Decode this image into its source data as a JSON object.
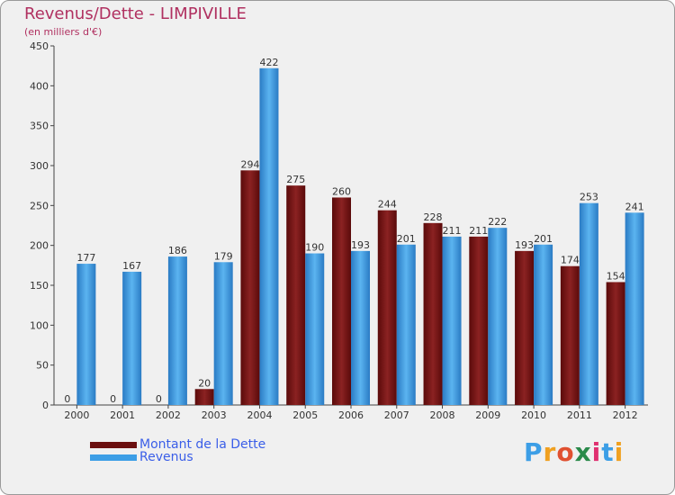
{
  "chart_data": {
    "type": "bar",
    "title": "Revenus/Dette - LIMPIVILLE",
    "subtitle": "(en milliers d'€)",
    "categories": [
      "2000",
      "2001",
      "2002",
      "2003",
      "2004",
      "2005",
      "2006",
      "2007",
      "2008",
      "2009",
      "2010",
      "2011",
      "2012"
    ],
    "series": [
      {
        "name": "Montant de la Dette",
        "color": "#8b1a1a",
        "values": [
          0,
          0,
          0,
          20,
          294,
          275,
          260,
          244,
          228,
          211,
          193,
          174,
          154
        ]
      },
      {
        "name": "Revenus",
        "color": "#3c9ee6",
        "values": [
          177,
          167,
          186,
          179,
          422,
          190,
          193,
          201,
          211,
          222,
          201,
          253,
          241
        ]
      }
    ],
    "ylim": [
      0,
      450
    ],
    "yticks": [
      0,
      50,
      100,
      150,
      200,
      250,
      300,
      350,
      400,
      450
    ],
    "grid": false,
    "legend_position": "bottom-left"
  },
  "logo": {
    "letters": [
      "P",
      "r",
      "o",
      "x",
      "i",
      "t",
      "i"
    ],
    "colors": [
      "#3c9ee6",
      "#f0a020",
      "#e05030",
      "#2a8a4a",
      "#e03070",
      "#3c9ee6",
      "#f0a020"
    ]
  }
}
